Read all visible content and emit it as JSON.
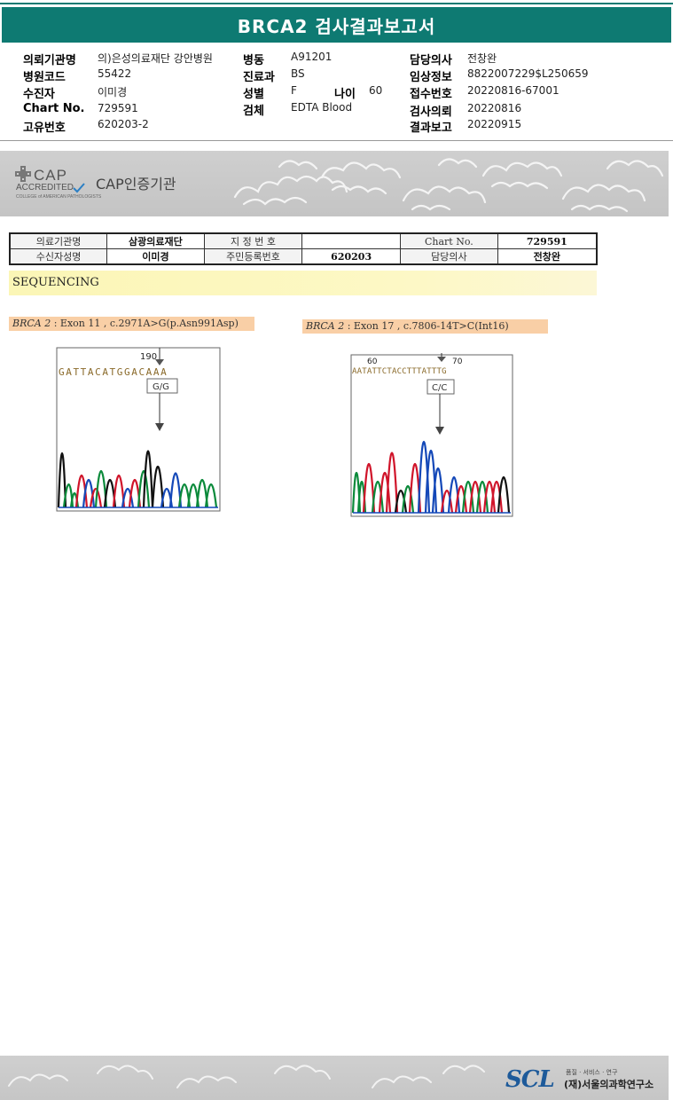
{
  "report": {
    "title": "BRCA2 검사결과보고서",
    "rows": [
      {
        "k1": "의뢰기관명",
        "v1": "의)은성의료재단 강안병원",
        "k2": "병동",
        "v2": "A91201",
        "k3": "담당의사",
        "v3": "전창완"
      },
      {
        "k1": "병원코드",
        "v1": "55422",
        "k2": "진료과",
        "v2": "BS",
        "k3": "임상정보",
        "v3": "8822007229$L250659"
      },
      {
        "k1": "수진자",
        "v1": "이미경",
        "k2": "성별",
        "v2": "F",
        "k3": "접수번호",
        "v3": "20220816-67001"
      },
      {
        "k1": "Chart No.",
        "v1": "729591",
        "k2": "검체",
        "v2": "EDTA Blood",
        "k3": "검사의뢰",
        "v3": "20220816"
      },
      {
        "k1": "고유번호",
        "v1": "620203-2",
        "k2": "",
        "v2": "",
        "k3": "결과보고",
        "v3": "20220915"
      }
    ],
    "age_label": "나이",
    "age_value": "60"
  },
  "banner": {
    "cap_word": "CAP",
    "cap_accredited": "ACCREDITED",
    "cap_college": "COLLEGE of AMERICAN PATHOLOGISTS",
    "label": "CAP인증기관"
  },
  "header_table": {
    "r1": [
      "의료기관명",
      "삼광의료재단",
      "지 정 번 호",
      "",
      "Chart No.",
      "729591"
    ],
    "r2": [
      "수신자성명",
      "이미경",
      "주민등록번호",
      "620203",
      "담당의사",
      "전창완"
    ]
  },
  "section": {
    "label": "SEQUENCING"
  },
  "variants": [
    {
      "gene": "BRCA 2",
      "detail": " : Exon 11 , c.2971A>G(p.Asn991Asp)",
      "position": "190",
      "genotype": "G/G",
      "sequence": "GATTACATGGACAAA"
    },
    {
      "gene": "BRCA 2",
      "detail": " : Exon 17 , c.7806-14T>C(Int16)",
      "position_left": "60",
      "position_right": "70",
      "genotype": "C/C",
      "sequence": "AATATTCTACCTTTATTTG"
    }
  ],
  "footer": {
    "logo": "SCL",
    "tagline": "품질 · 서비스 · 연구",
    "name": "(재)서울의과학연구소"
  },
  "colors": {
    "title_bar": "#0e7a72",
    "variant_bg": "#f9cfa6",
    "seq_band": "#fbf6b6"
  }
}
